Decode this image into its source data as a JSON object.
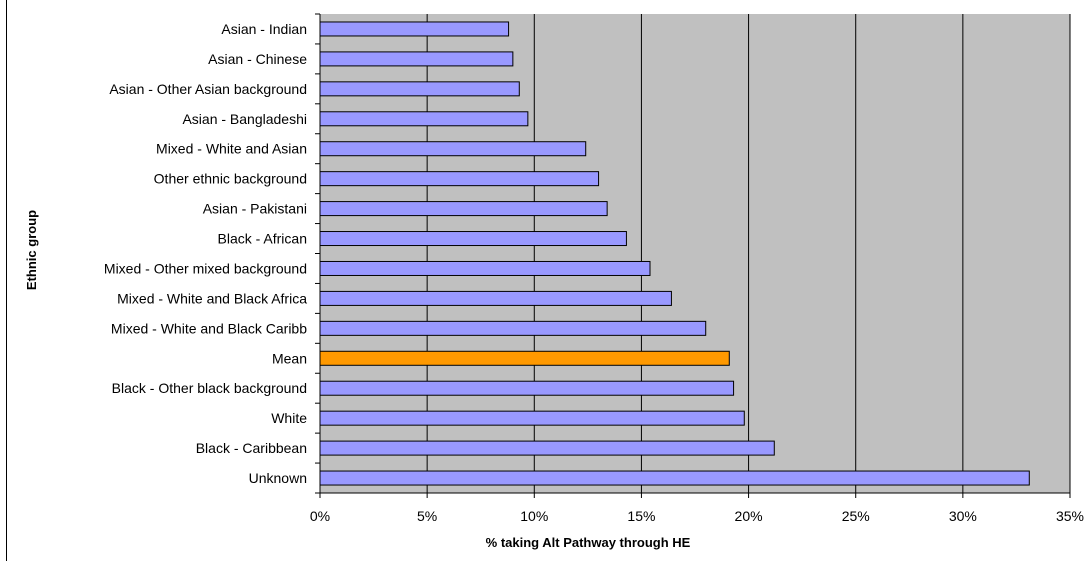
{
  "chart_data": {
    "type": "bar",
    "orientation": "horizontal",
    "title": "",
    "xlabel": "% taking Alt Pathway through HE",
    "ylabel": "Ethnic group",
    "xlim": [
      0,
      35
    ],
    "x_tick_values": [
      0,
      5,
      10,
      15,
      20,
      25,
      30,
      35
    ],
    "x_tick_labels": [
      "0%",
      "5%",
      "10%",
      "15%",
      "20%",
      "25%",
      "30%",
      "35%"
    ],
    "grid": "vertical",
    "categories": [
      "Asian - Indian",
      "Asian - Chinese",
      "Asian - Other Asian background",
      "Asian - Bangladeshi",
      "Mixed - White and Asian",
      "Other ethnic background",
      "Asian - Pakistani",
      "Black - African",
      "Mixed - Other mixed background",
      "Mixed - White and Black Africa",
      "Mixed - White and Black Caribb",
      "Mean",
      "Black - Other black background",
      "White",
      "Black - Caribbean",
      "Unknown"
    ],
    "values": [
      8.8,
      9.0,
      9.3,
      9.7,
      12.4,
      13.0,
      13.4,
      14.3,
      15.4,
      16.4,
      18.0,
      19.1,
      19.3,
      19.8,
      21.2,
      33.1
    ],
    "highlight_category": "Mean",
    "colors": {
      "bar": "#9999ff",
      "highlight_bar": "#ff9900",
      "plot_background": "#c0c0c0",
      "grid": "#000000"
    }
  }
}
